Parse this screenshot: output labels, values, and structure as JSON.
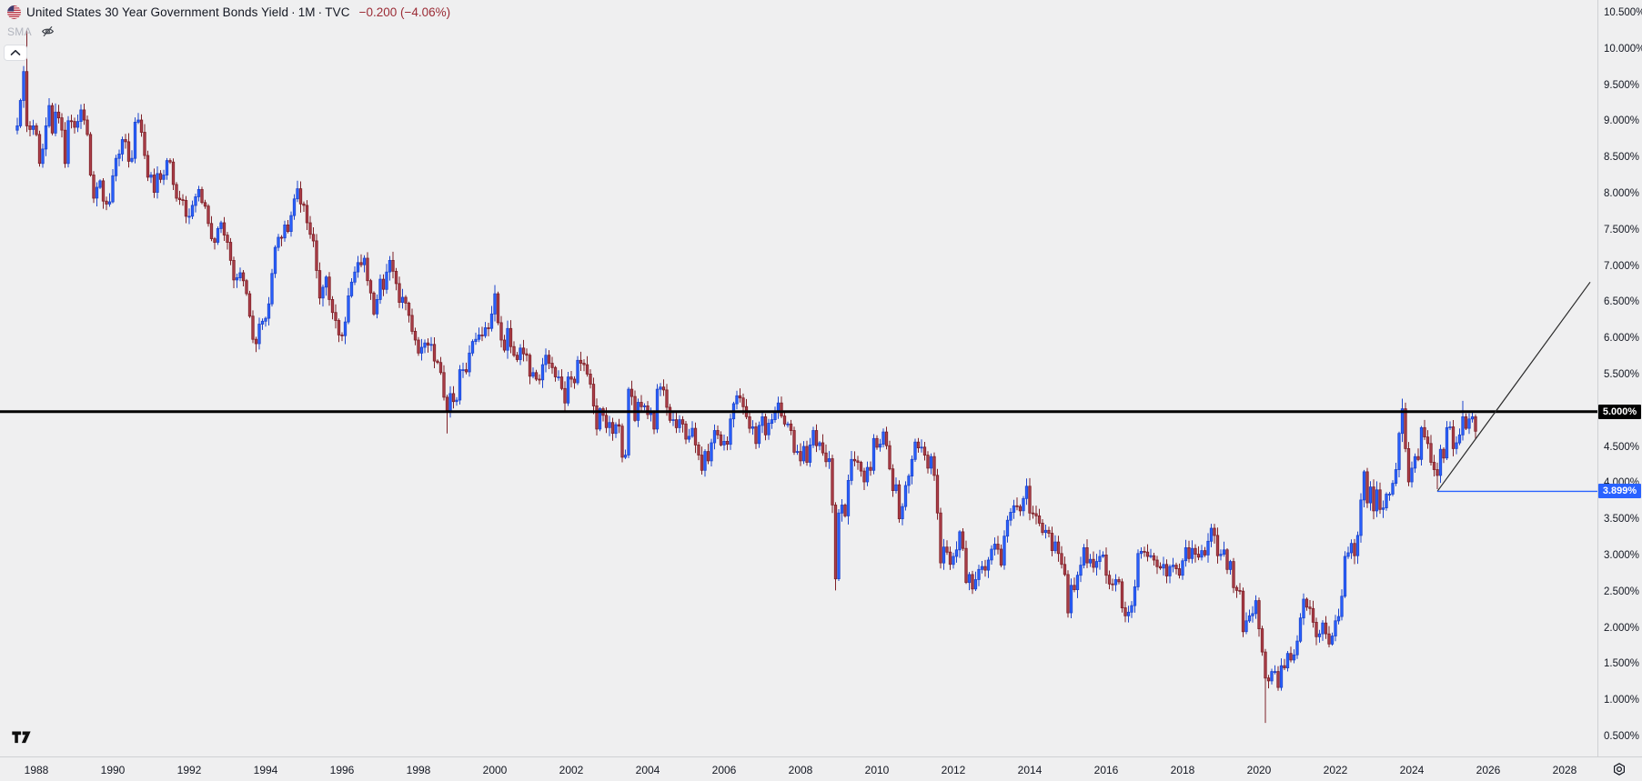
{
  "header": {
    "title": "United States 30 Year Government Bonds Yield",
    "separator": "·",
    "interval": "1M",
    "exchange": "TVC",
    "change": "−0.200 (−4.06%)"
  },
  "indicator_row": {
    "label": "SMA"
  },
  "colors": {
    "background": "#efeff0",
    "up_fill": "#2962ff",
    "up_border": "#1e45cc",
    "down_fill": "#ac3f4a",
    "down_border": "#7e2027",
    "axis_text": "#131722",
    "change_text": "#9b2b35",
    "level_line": "#000000",
    "ray_line": "#2962ff",
    "trend_line": "#2a2a2a",
    "level_badge_bg": "#000000",
    "ray_badge_bg": "#2962ff"
  },
  "price_axis": {
    "tick_labels": [
      "10.500%",
      "10.000%",
      "9.500%",
      "9.000%",
      "8.500%",
      "8.000%",
      "7.500%",
      "7.000%",
      "6.500%",
      "6.000%",
      "5.500%",
      "5.000%",
      "4.500%",
      "4.000%",
      "3.500%",
      "3.000%",
      "2.500%",
      "2.000%",
      "1.500%",
      "1.000%",
      "0.500%"
    ],
    "tick_values": [
      10.5,
      10.0,
      9.5,
      9.0,
      8.5,
      8.0,
      7.5,
      7.0,
      6.5,
      6.0,
      5.5,
      5.0,
      4.5,
      4.0,
      3.5,
      3.0,
      2.5,
      2.0,
      1.5,
      1.0,
      0.5
    ]
  },
  "time_axis": {
    "year_labels": [
      "1988",
      "1990",
      "1992",
      "1994",
      "1996",
      "1998",
      "2000",
      "2002",
      "2004",
      "2006",
      "2008",
      "2010",
      "2012",
      "2014",
      "2016",
      "2018",
      "2020",
      "2022",
      "2024",
      "2026",
      "2028"
    ]
  },
  "annotations": {
    "horizontal_line": {
      "value": 5.0,
      "label": "5.000%"
    },
    "ray": {
      "start_date": "2024-09",
      "value": 3.899,
      "label": "3.899%"
    },
    "trend_line": {
      "from_date": "2024-09",
      "from_value": 3.899,
      "to_date": "2028-09",
      "to_value": 6.79
    }
  },
  "chart_data": {
    "type": "candlestick",
    "title": "United States 30 Year Government Bonds Yield",
    "x_start": "1987-07",
    "x_interval": "1M",
    "y_unit": "percent",
    "ylim": [
      0.5,
      10.5
    ],
    "last_close": 4.73,
    "prev_close": 4.93,
    "closes_by_year": {
      "1987": [
        8.95,
        9.3,
        9.7,
        8.95,
        8.9,
        8.95
      ],
      "1988": [
        8.83,
        8.43,
        8.63,
        8.95,
        9.23,
        8.85,
        9.14,
        9.06,
        8.89,
        8.43,
        9.02,
        9.01
      ],
      "1989": [
        8.93,
        9.01,
        9.17,
        9.03,
        8.83,
        8.27,
        7.95,
        8.1,
        8.19,
        7.91,
        7.87,
        7.9
      ],
      "1990": [
        8.26,
        8.5,
        8.56,
        8.76,
        8.73,
        8.46,
        8.5,
        9.0,
        9.03,
        8.86,
        8.54,
        8.24
      ],
      "1991": [
        8.27,
        8.03,
        8.29,
        8.21,
        8.27,
        8.47,
        8.45,
        8.14,
        7.95,
        7.93,
        7.92,
        7.7
      ],
      "1992": [
        7.7,
        7.85,
        7.97,
        8.07,
        7.89,
        7.84,
        7.6,
        7.39,
        7.34,
        7.53,
        7.61,
        7.44
      ],
      "1993": [
        7.34,
        7.09,
        6.82,
        6.85,
        6.92,
        6.81,
        6.63,
        6.32,
        6.0,
        5.94,
        6.21,
        6.25
      ],
      "1994": [
        6.29,
        6.49,
        6.91,
        7.27,
        7.41,
        7.4,
        7.58,
        7.49,
        7.71,
        7.94,
        8.08,
        7.87
      ],
      "1995": [
        7.85,
        7.61,
        7.45,
        7.36,
        6.95,
        6.57,
        6.72,
        6.86,
        6.55,
        6.37,
        6.26,
        6.06
      ],
      "1996": [
        6.05,
        6.24,
        6.6,
        6.79,
        6.93,
        7.06,
        7.03,
        7.12,
        6.81,
        6.64,
        6.35,
        6.55
      ],
      "1997": [
        6.83,
        6.69,
        6.93,
        7.09,
        6.94,
        6.77,
        6.51,
        6.58,
        6.5,
        6.33,
        6.11,
        5.99
      ],
      "1998": [
        5.81,
        5.89,
        5.95,
        5.92,
        5.93,
        5.7,
        5.68,
        5.54,
        5.2,
        5.01,
        5.25,
        5.14
      ],
      "1999": [
        5.16,
        5.58,
        5.58,
        5.55,
        5.81,
        5.97,
        6.0,
        6.06,
        6.05,
        6.16,
        6.15,
        6.35
      ],
      "2000": [
        6.63,
        6.23,
        5.99,
        5.85,
        6.15,
        5.9,
        5.78,
        5.72,
        5.88,
        5.8,
        5.78,
        5.49
      ],
      "2001": [
        5.54,
        5.45,
        5.44,
        5.65,
        5.78,
        5.67,
        5.61,
        5.48,
        5.48,
        5.32,
        5.12,
        5.48
      ],
      "2002": [
        5.45,
        5.4,
        5.71,
        5.67,
        5.65,
        5.52,
        5.38,
        5.08,
        4.76,
        5.04,
        4.95,
        4.78
      ],
      "2003": [
        4.85,
        4.7,
        4.82,
        4.8,
        4.37,
        4.4,
        5.31,
        5.21,
        4.88,
        5.13,
        5.07,
        5.08
      ],
      "2004": [
        4.96,
        4.98,
        4.76,
        5.31,
        5.34,
        5.3,
        5.06,
        4.88,
        4.89,
        4.78,
        4.89,
        4.83
      ],
      "2005": [
        4.62,
        4.66,
        4.77,
        4.54,
        4.4,
        4.19,
        4.45,
        4.32,
        4.57,
        4.74,
        4.68,
        4.54
      ],
      "2006": [
        4.59,
        4.55,
        4.9,
        5.11,
        5.22,
        5.19,
        5.07,
        4.93,
        4.77,
        4.79,
        4.56,
        4.81
      ],
      "2007": [
        4.93,
        4.68,
        4.84,
        4.89,
        5.01,
        5.12,
        4.94,
        4.83,
        4.83,
        4.74,
        4.44,
        4.45
      ],
      "2008": [
        4.32,
        4.52,
        4.3,
        4.54,
        4.74,
        4.53,
        4.57,
        4.43,
        4.31,
        4.35,
        3.71,
        2.69
      ],
      "2009": [
        3.6,
        3.71,
        3.56,
        4.05,
        4.34,
        4.32,
        4.3,
        4.18,
        4.03,
        4.23,
        4.19,
        4.63
      ],
      "2010": [
        4.51,
        4.55,
        4.72,
        4.53,
        4.21,
        3.91,
        3.99,
        3.52,
        3.69,
        3.98,
        4.11,
        4.34
      ],
      "2011": [
        4.58,
        4.5,
        4.51,
        4.4,
        4.22,
        4.38,
        4.12,
        3.6,
        2.91,
        3.13,
        3.06,
        2.89
      ],
      "2012": [
        3.0,
        3.09,
        3.34,
        3.11,
        2.64,
        2.75,
        2.55,
        2.68,
        2.82,
        2.86,
        2.81,
        2.95
      ],
      "2013": [
        3.1,
        3.17,
        3.1,
        2.88,
        3.28,
        3.5,
        3.61,
        3.7,
        3.69,
        3.63,
        3.8,
        3.97
      ],
      "2014": [
        3.6,
        3.59,
        3.56,
        3.46,
        3.33,
        3.36,
        3.32,
        3.08,
        3.2,
        3.04,
        2.89,
        2.75
      ],
      "2015": [
        2.22,
        2.6,
        2.54,
        2.74,
        2.88,
        3.12,
        2.91,
        2.96,
        2.85,
        2.93,
        3.0,
        3.02
      ],
      "2016": [
        2.74,
        2.62,
        2.61,
        2.68,
        2.65,
        2.29,
        2.18,
        2.23,
        2.32,
        2.58,
        3.04,
        3.07
      ],
      "2017": [
        3.06,
        3.0,
        3.01,
        2.95,
        2.86,
        2.84,
        2.89,
        2.73,
        2.86,
        2.88,
        2.83,
        2.74
      ],
      "2018": [
        2.94,
        3.12,
        2.97,
        3.11,
        3.03,
        2.99,
        3.08,
        3.02,
        3.21,
        3.39,
        3.29,
        3.01
      ],
      "2019": [
        3.03,
        3.09,
        2.82,
        2.93,
        2.57,
        2.53,
        2.52,
        1.96,
        2.11,
        2.18,
        2.21,
        2.39
      ],
      "2020": [
        2.0,
        1.68,
        1.32,
        1.28,
        1.41,
        1.41,
        1.19,
        1.49,
        1.46,
        1.66,
        1.57,
        1.64
      ],
      "2021": [
        1.83,
        2.15,
        2.41,
        2.3,
        2.28,
        2.09,
        1.89,
        1.93,
        2.08,
        1.93,
        1.79,
        1.9
      ],
      "2022": [
        2.11,
        2.17,
        2.45,
        3.0,
        3.05,
        3.18,
        3.01,
        3.29,
        3.78,
        4.17,
        3.74,
        3.96
      ],
      "2023": [
        3.63,
        3.92,
        3.65,
        3.67,
        3.86,
        3.86,
        4.01,
        4.2,
        4.7,
        5.04,
        4.49,
        4.03
      ],
      "2024": [
        4.22,
        4.38,
        4.34,
        4.78,
        4.65,
        4.56,
        4.3,
        4.2,
        4.12,
        4.48,
        4.36,
        4.78
      ],
      "2025": [
        4.79,
        4.49,
        4.57,
        4.68,
        4.93,
        4.77,
        4.9,
        4.93,
        4.73
      ]
    },
    "extremes": {
      "1987-10": {
        "high": 10.27
      },
      "1998-10": {
        "low": 4.7
      },
      "2000-01": {
        "high": 6.75
      },
      "2008-12": {
        "low": 2.53
      },
      "2015-01": {
        "low": 2.22
      },
      "2016-07": {
        "low": 2.09
      },
      "2020-03": {
        "low": 0.7
      },
      "2023-10": {
        "high": 5.18
      },
      "2024-09": {
        "low": 3.93
      },
      "2025-05": {
        "high": 5.15
      }
    }
  }
}
